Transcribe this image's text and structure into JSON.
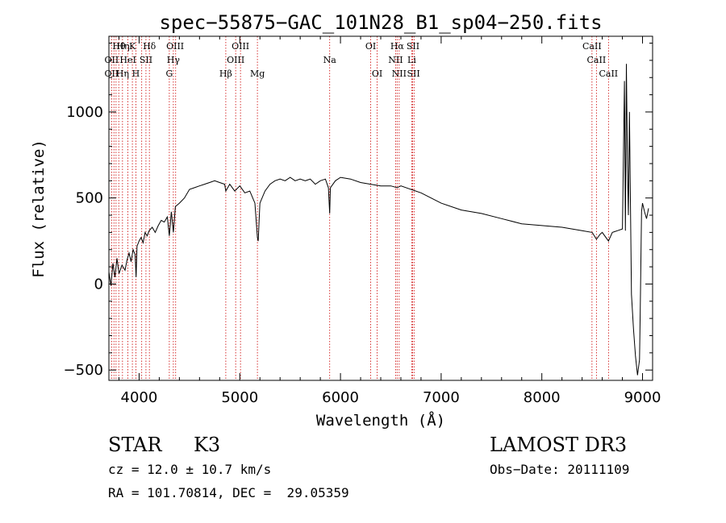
{
  "chart_data": {
    "type": "line",
    "title": "spec−55875−GAC_101N28_B1_sp04−250.fits",
    "xlabel": "Wavelength (Å)",
    "ylabel": "Flux (relative)",
    "xlim": [
      3700,
      9100
    ],
    "ylim": [
      -560,
      1440
    ],
    "x_ticks": [
      4000,
      5000,
      6000,
      7000,
      8000,
      9000
    ],
    "y_ticks": [
      -500,
      0,
      500,
      1000
    ],
    "x_tick_labels": [
      "4000",
      "5000",
      "6000",
      "7000",
      "8000",
      "9000"
    ],
    "y_tick_labels": [
      "−500",
      "0",
      "500",
      "1000"
    ],
    "series": [
      {
        "name": "flux",
        "x": [
          3700,
          3720,
          3740,
          3760,
          3780,
          3800,
          3830,
          3860,
          3880,
          3900,
          3920,
          3940,
          3960,
          3970,
          3980,
          4000,
          4020,
          4040,
          4060,
          4080,
          4100,
          4130,
          4160,
          4190,
          4220,
          4250,
          4280,
          4300,
          4320,
          4340,
          4360,
          4400,
          4450,
          4500,
          4550,
          4600,
          4650,
          4700,
          4750,
          4800,
          4850,
          4861,
          4900,
          4950,
          5000,
          5050,
          5100,
          5150,
          5175,
          5183,
          5200,
          5250,
          5300,
          5350,
          5400,
          5450,
          5500,
          5550,
          5600,
          5650,
          5700,
          5750,
          5800,
          5850,
          5880,
          5893,
          5900,
          5950,
          6000,
          6100,
          6200,
          6300,
          6400,
          6500,
          6563,
          6600,
          6700,
          6800,
          6900,
          7000,
          7200,
          7400,
          7600,
          7800,
          8000,
          8200,
          8400,
          8500,
          8542,
          8580,
          8600,
          8662,
          8700,
          8750,
          8800,
          8820,
          8830,
          8840,
          8850,
          8860,
          8870,
          8890,
          8910,
          8930,
          8950,
          8970,
          8980,
          8990,
          9000,
          9020,
          9040,
          9060
        ],
        "y": [
          70,
          -10,
          120,
          40,
          150,
          60,
          110,
          80,
          140,
          180,
          130,
          200,
          170,
          40,
          220,
          250,
          270,
          240,
          300,
          280,
          310,
          330,
          300,
          340,
          370,
          360,
          390,
          280,
          420,
          300,
          450,
          470,
          500,
          550,
          560,
          570,
          580,
          590,
          600,
          590,
          580,
          540,
          580,
          540,
          570,
          530,
          540,
          470,
          270,
          250,
          470,
          540,
          580,
          600,
          610,
          600,
          620,
          600,
          610,
          600,
          610,
          580,
          600,
          610,
          560,
          410,
          560,
          600,
          620,
          610,
          590,
          580,
          570,
          570,
          560,
          570,
          550,
          530,
          500,
          470,
          430,
          410,
          380,
          350,
          340,
          330,
          310,
          300,
          260,
          290,
          300,
          250,
          300,
          310,
          320,
          1180,
          310,
          1280,
          700,
          400,
          1000,
          -60,
          -260,
          -420,
          -530,
          -440,
          -50,
          420,
          470,
          420,
          380,
          440
        ]
      }
    ],
    "reference_lines": [
      3727,
      3750,
      3771,
      3798,
      3835,
      3889,
      3933,
      3968,
      4026,
      4068,
      4102,
      4300,
      4340,
      4363,
      4861,
      4959,
      5007,
      5175,
      5893,
      6300,
      6364,
      6548,
      6563,
      6583,
      6708,
      6716,
      6731,
      8498,
      8542,
      8662
    ],
    "annotations_row1": [
      {
        "x": 3800,
        "text": "Hθ"
      },
      {
        "x": 3840,
        "text": "Hη"
      },
      {
        "x": 3933,
        "text": "K"
      },
      {
        "x": 4102,
        "text": "Hδ"
      },
      {
        "x": 4358,
        "text": "OIII"
      },
      {
        "x": 5007,
        "text": "OIII"
      },
      {
        "x": 6300,
        "text": "OI"
      },
      {
        "x": 6563,
        "text": "Hα"
      },
      {
        "x": 6720,
        "text": "SII"
      },
      {
        "x": 8498,
        "text": "CaII"
      }
    ],
    "annotations_row2": [
      {
        "x": 3727,
        "text": "OII"
      },
      {
        "x": 3889,
        "text": "HeI"
      },
      {
        "x": 4068,
        "text": "SII"
      },
      {
        "x": 4340,
        "text": "Hγ"
      },
      {
        "x": 4959,
        "text": "OIII"
      },
      {
        "x": 5893,
        "text": "Na"
      },
      {
        "x": 6548,
        "text": "NII"
      },
      {
        "x": 6708,
        "text": "Li"
      },
      {
        "x": 8542,
        "text": "CaII"
      }
    ],
    "annotations_row3": [
      {
        "x": 3727,
        "text": "OII"
      },
      {
        "x": 3835,
        "text": "Hη"
      },
      {
        "x": 3968,
        "text": "H"
      },
      {
        "x": 4300,
        "text": "G"
      },
      {
        "x": 4861,
        "text": "Hβ"
      },
      {
        "x": 5175,
        "text": "Mg"
      },
      {
        "x": 6364,
        "text": "OI"
      },
      {
        "x": 6583,
        "text": "NII"
      },
      {
        "x": 6725,
        "text": "SII"
      },
      {
        "x": 8662,
        "text": "CaII"
      }
    ]
  },
  "info": {
    "class": "STAR",
    "subclass": "K3",
    "survey": "LAMOST DR3",
    "redshift": "cz = 12.0 ± 10.7 km/s",
    "obs_date": "Obs−Date: 20111109",
    "coords": "RA = 101.70814, DEC =  29.05359"
  },
  "colors": {
    "spectrum": "#000000",
    "reference_line": "#cc0000",
    "axes": "#000000"
  }
}
